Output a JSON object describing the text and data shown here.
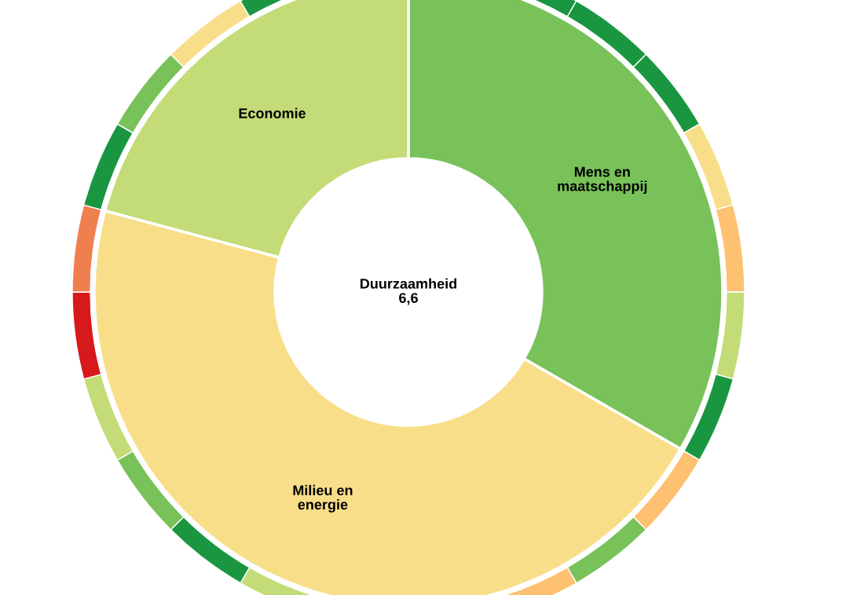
{
  "chart_data": {
    "type": "donut",
    "annotations": [
      "Duurzaamheid\n6,6",
      "Mens en\nmaatschappij",
      "Milieu en\nenergie",
      "Economie"
    ],
    "series": [
      {
        "values": [
          33.33,
          45.83,
          20.83
        ],
        "colors": [
          "#78c259",
          "#f9de89",
          "#c3dc77"
        ]
      },
      {
        "values": [
          8.33,
          4.17,
          4.17,
          4.17,
          4.17,
          4.17,
          4.17,
          4.17,
          4.17,
          8.33,
          8.33,
          4.17,
          4.17,
          4.17,
          4.17,
          4.17,
          4.17,
          4.17,
          4.17,
          8.33
        ],
        "colors": [
          "#1a9641",
          "#1a9641",
          "#1a9641",
          "#f9de89",
          "#fdc171",
          "#c3dc77",
          "#1a9641",
          "#fdc171",
          "#78c259",
          "#fdc171",
          "#c3dc77",
          "#1a9641",
          "#78c259",
          "#c3dc77",
          "#d7191c",
          "#f07f4f",
          "#1a9641",
          "#78c259",
          "#f9de89",
          "#1a9641"
        ]
      }
    ]
  }
}
